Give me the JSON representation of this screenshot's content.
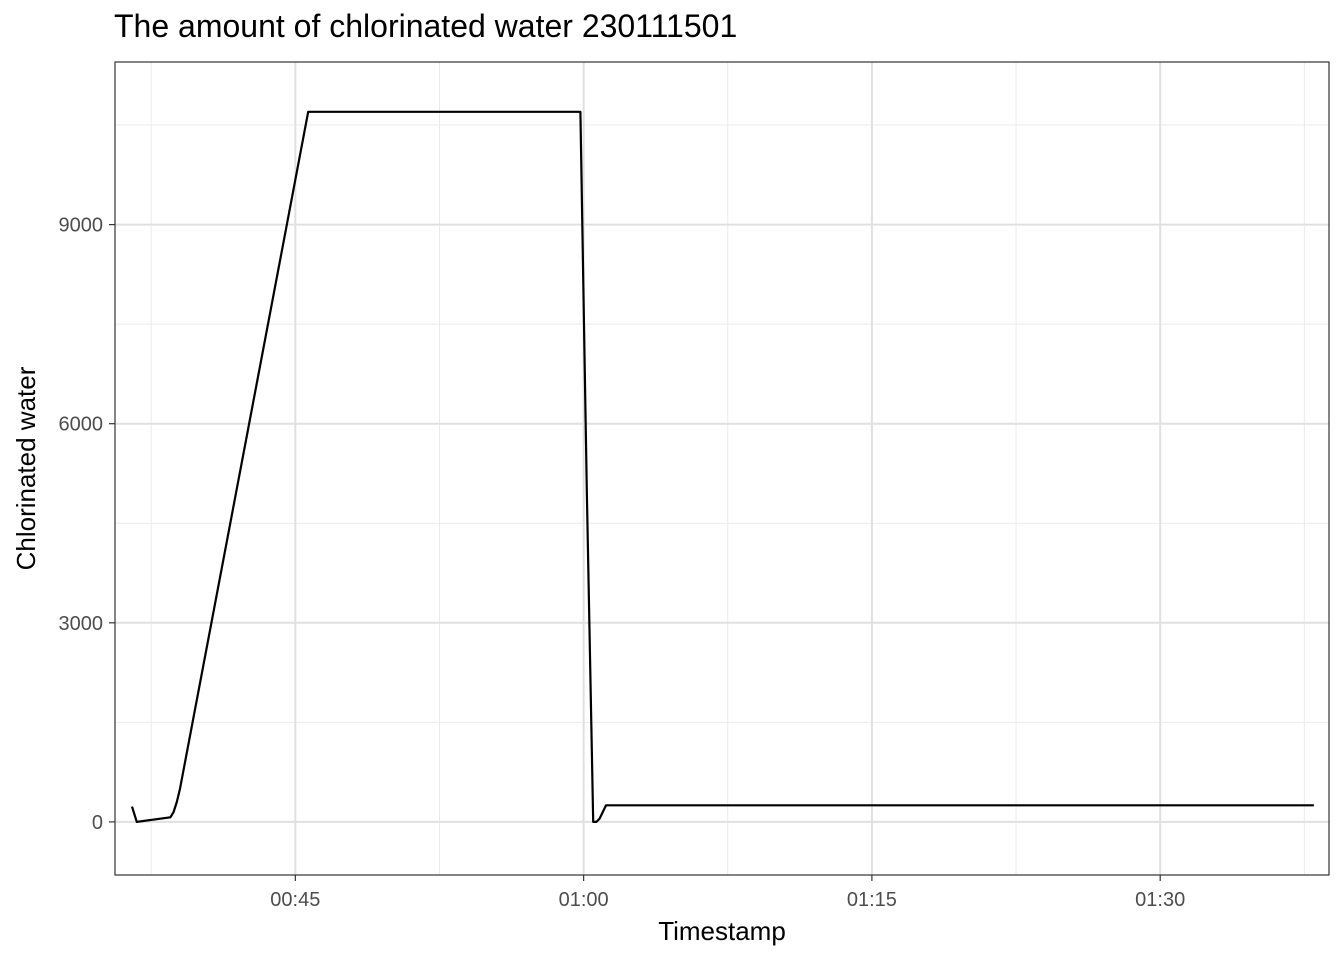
{
  "chart_data": {
    "type": "line",
    "title": "The amount of chlorinated water 230111501",
    "xlabel": "Timestamp",
    "ylabel": "Chlorinated water",
    "x_unit": "time (HH:MM)",
    "xlim": [
      "00:35:37",
      "01:38:47"
    ],
    "ylim": [
      -800,
      11450
    ],
    "x_ticks": [
      {
        "value": "00:45",
        "label": "00:45"
      },
      {
        "value": "01:00",
        "label": "01:00"
      },
      {
        "value": "01:15",
        "label": "01:15"
      },
      {
        "value": "01:30",
        "label": "01:30"
      }
    ],
    "x_minor_ticks": [
      "00:37:30",
      "00:52:30",
      "01:07:30",
      "01:22:30",
      "01:37:30"
    ],
    "y_ticks": [
      0,
      3000,
      6000,
      9000
    ],
    "y_minor_ticks": [
      1500,
      4500,
      7500,
      10500
    ],
    "grid": true,
    "series": [
      {
        "color": "#000000",
        "x": [
          "00:36:30",
          "00:36:45",
          "00:38:30",
          "00:38:40",
          "00:38:50",
          "00:39:00",
          "00:45:40",
          "00:59:50",
          "01:00:10",
          "01:00:30",
          "01:00:40",
          "01:00:50",
          "01:01:10",
          "01:38:00"
        ],
        "y": [
          230,
          0,
          70,
          150,
          300,
          500,
          10700,
          10700,
          5000,
          0,
          0,
          50,
          250,
          250
        ]
      }
    ]
  }
}
